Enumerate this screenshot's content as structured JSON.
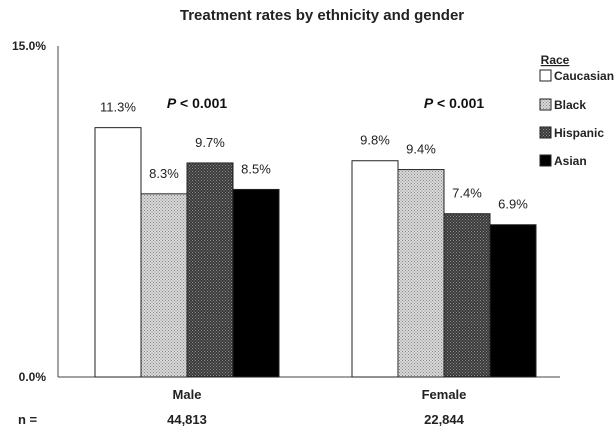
{
  "chart_data": {
    "type": "bar",
    "title": "Treatment rates by ethnicity and gender",
    "categories": [
      "Male",
      "Female"
    ],
    "series": [
      {
        "name": "Caucasian",
        "values": [
          11.3,
          9.8
        ],
        "labels": [
          "11.3%",
          "9.8%"
        ],
        "pattern": "white"
      },
      {
        "name": "Black",
        "values": [
          8.3,
          9.4
        ],
        "labels": [
          "8.3%",
          "9.4%"
        ],
        "pattern": "dotted"
      },
      {
        "name": "Hispanic",
        "values": [
          9.7,
          7.4
        ],
        "labels": [
          "9.7%",
          "7.4%"
        ],
        "pattern": "dark-dotted"
      },
      {
        "name": "Asian",
        "values": [
          8.5,
          6.9
        ],
        "labels": [
          "8.5%",
          "6.9%"
        ],
        "pattern": "black"
      }
    ],
    "ylim": [
      0,
      15
    ],
    "yticks": [
      {
        "value": 0,
        "label": "0.0%"
      },
      {
        "value": 15,
        "label": "15.0%"
      }
    ],
    "xlabel": "",
    "ylabel": "",
    "grid": false,
    "legend": {
      "title": "Race",
      "position": "right"
    },
    "annotations": [
      {
        "category": "Male",
        "text": "P < 0.001"
      },
      {
        "category": "Female",
        "text": "P < 0.001"
      }
    ],
    "n_row": {
      "label": "n =",
      "values": [
        "44,813",
        "22,844"
      ]
    }
  }
}
